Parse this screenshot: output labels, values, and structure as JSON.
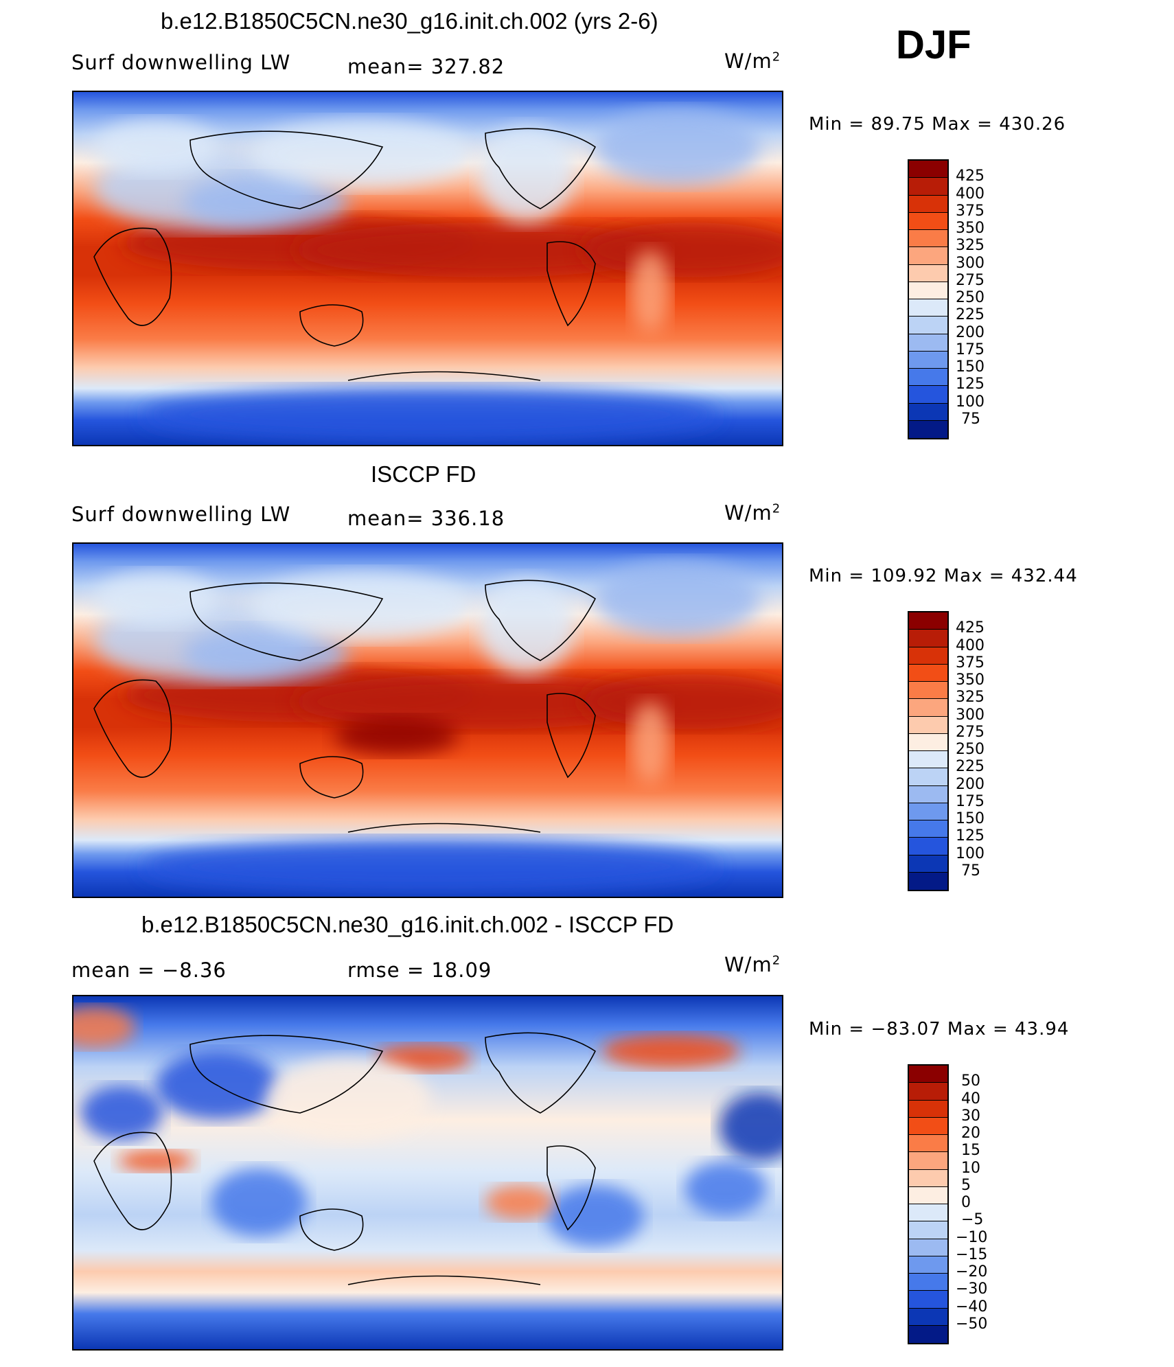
{
  "header": {
    "model_title": "b.e12.B1850C5CN.ne30_g16.init.ch.002 (yrs 2-6)",
    "season": "DJF"
  },
  "panels": [
    {
      "title": "b.e12.B1850C5CN.ne30_g16.init.ch.002 (yrs 2-6)",
      "variable": "Surf downwelling LW",
      "stat1": "mean=  327.82",
      "stat2": "",
      "units": "W/m",
      "units_exp": "2",
      "minmax": "Min =   89.75  Max  =  430.26"
    },
    {
      "title": "ISCCP FD",
      "variable": "Surf downwelling LW",
      "stat1": "mean=  336.18",
      "stat2": "",
      "units": "W/m",
      "units_exp": "2",
      "minmax": "Min  =  109.92  Max  =  432.44"
    },
    {
      "title": "b.e12.B1850C5CN.ne30_g16.init.ch.002 - ISCCP FD",
      "variable": "mean  =    −8.36",
      "stat1": "rmse  =    18.09",
      "stat2": "",
      "units": "W/m",
      "units_exp": "2",
      "minmax": "Min  =  −83.07  Max  =    43.94"
    }
  ],
  "chart_data": [
    {
      "type": "heatmap",
      "title": "b.e12.B1850C5CN.ne30_g16.init.ch.002 (yrs 2-6)",
      "variable": "Surf downwelling LW",
      "units": "W/m2",
      "mean": 327.82,
      "min": 89.75,
      "max": 430.26,
      "colorbar_levels": [
        425,
        400,
        375,
        350,
        325,
        300,
        275,
        250,
        225,
        200,
        175,
        150,
        125,
        100,
        75
      ],
      "colorbar_colors": [
        "#8b0000",
        "#b81d07",
        "#d83208",
        "#f24e16",
        "#fa7c47",
        "#fca67e",
        "#fdcbae",
        "#fdeee2",
        "#dce9f9",
        "#bcd3f5",
        "#9cbaf1",
        "#6e99ee",
        "#4679ea",
        "#2555dd",
        "#0c37b5",
        "#031a87"
      ]
    },
    {
      "type": "heatmap",
      "title": "ISCCP FD",
      "variable": "Surf downwelling LW",
      "units": "W/m2",
      "mean": 336.18,
      "min": 109.92,
      "max": 432.44,
      "colorbar_levels": [
        425,
        400,
        375,
        350,
        325,
        300,
        275,
        250,
        225,
        200,
        175,
        150,
        125,
        100,
        75
      ],
      "colorbar_colors": [
        "#8b0000",
        "#b81d07",
        "#d83208",
        "#f24e16",
        "#fa7c47",
        "#fca67e",
        "#fdcbae",
        "#fdeee2",
        "#dce9f9",
        "#bcd3f5",
        "#9cbaf1",
        "#6e99ee",
        "#4679ea",
        "#2555dd",
        "#0c37b5",
        "#031a87"
      ]
    },
    {
      "type": "heatmap",
      "title": "b.e12.B1850C5CN.ne30_g16.init.ch.002 - ISCCP FD",
      "units": "W/m2",
      "mean": -8.36,
      "rmse": 18.09,
      "min": -83.07,
      "max": 43.94,
      "colorbar_levels": [
        50,
        40,
        30,
        20,
        15,
        10,
        5,
        0,
        -5,
        -10,
        -15,
        -20,
        -30,
        -40,
        -50
      ],
      "colorbar_level_labels": [
        "50",
        "40",
        "30",
        "20",
        "15",
        "10",
        "5",
        "0",
        "−5",
        "−10",
        "−15",
        "−20",
        "−30",
        "−40",
        "−50"
      ],
      "colorbar_colors": [
        "#8b0000",
        "#b81d07",
        "#d83208",
        "#f24e16",
        "#fa7c47",
        "#fca67e",
        "#fdcbae",
        "#fdeee2",
        "#dce9f9",
        "#bcd3f5",
        "#9cbaf1",
        "#6e99ee",
        "#4679ea",
        "#2555dd",
        "#0c37b5",
        "#031a87"
      ]
    }
  ],
  "colors": {
    "border": "#000000",
    "background": "#ffffff"
  }
}
